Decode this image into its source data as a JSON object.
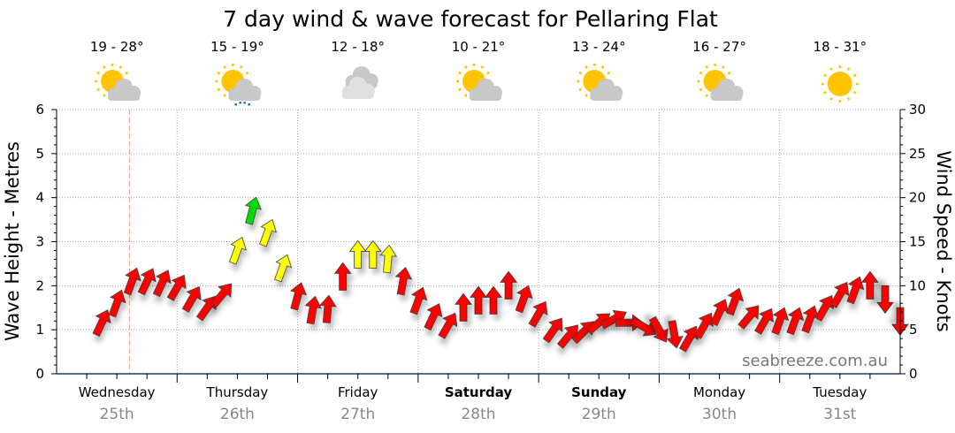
{
  "chart_data": {
    "type": "scatter",
    "title": "7 day wind & wave forecast for Pellaring Flat",
    "ylabel_left": "Wave Height - Metres",
    "ylabel_right": "Wind Speed - Knots",
    "ylim_left": [
      0,
      6
    ],
    "ylim_right": [
      0,
      30
    ],
    "yticks_left": [
      "0",
      "1",
      "2",
      "3",
      "4",
      "5",
      "6"
    ],
    "yticks_right": [
      "0",
      "5",
      "10",
      "15",
      "20",
      "25",
      "30"
    ],
    "grid": true,
    "days": [
      {
        "name": "Wednesday",
        "date": "25th",
        "temp": "19 - 28°",
        "icon": "partly-cloudy",
        "weekend": false
      },
      {
        "name": "Thursday",
        "date": "26th",
        "temp": "15 - 19°",
        "icon": "partly-cloudy-showers",
        "weekend": false
      },
      {
        "name": "Friday",
        "date": "27th",
        "temp": "12 - 18°",
        "icon": "cloudy",
        "weekend": false
      },
      {
        "name": "Saturday",
        "date": "28th",
        "temp": "10 - 21°",
        "icon": "partly-cloudy",
        "weekend": true
      },
      {
        "name": "Sunday",
        "date": "29th",
        "temp": "13 - 24°",
        "icon": "partly-cloudy",
        "weekend": true
      },
      {
        "name": "Monday",
        "date": "30th",
        "temp": "16 - 27°",
        "icon": "partly-cloudy",
        "weekend": false
      },
      {
        "name": "Tuesday",
        "date": "31st",
        "temp": "18 - 31°",
        "icon": "sunny",
        "weekend": false
      }
    ],
    "now_marker_hour": 14.5,
    "wind_series": {
      "name": "Wind speed (knots) and direction arrows",
      "hours": [
        9,
        12,
        15,
        18,
        21,
        24,
        27,
        30,
        33,
        36,
        39,
        42,
        45,
        48,
        51,
        54,
        57,
        60,
        63,
        66,
        69,
        72,
        75,
        78,
        81,
        84,
        87,
        90,
        93,
        96,
        99,
        102,
        105,
        108,
        111,
        114,
        117,
        120,
        123,
        126,
        129,
        132,
        135,
        138,
        141,
        144,
        147,
        150,
        153,
        156,
        159,
        162,
        165,
        168
      ],
      "knots": [
        5.8,
        8,
        10.5,
        10.5,
        10.3,
        9.8,
        8.5,
        7.5,
        9,
        14,
        18.5,
        16,
        12,
        8.8,
        7.2,
        7.3,
        11,
        13.5,
        13.5,
        13,
        10.5,
        8.3,
        6.5,
        5.5,
        7.5,
        8.3,
        8.3,
        10,
        8.5,
        6.8,
        5,
        4.3,
        4.8,
        5.8,
        6.2,
        5.8,
        5.3,
        5,
        4.5,
        4,
        5.5,
        7,
        8.2,
        6.5,
        6,
        6,
        6,
        6.2,
        7.5,
        9,
        9.5,
        10,
        8.5,
        6
      ],
      "direction_deg": [
        25,
        20,
        20,
        25,
        25,
        30,
        30,
        35,
        40,
        20,
        15,
        20,
        20,
        15,
        10,
        5,
        0,
        0,
        0,
        5,
        10,
        20,
        25,
        30,
        0,
        0,
        0,
        0,
        20,
        30,
        35,
        40,
        45,
        50,
        60,
        90,
        120,
        150,
        170,
        30,
        30,
        25,
        20,
        40,
        30,
        20,
        20,
        20,
        30,
        30,
        20,
        0,
        180,
        180
      ]
    },
    "color_scale": {
      "light": "#ff0000",
      "moderate": "#ffff00",
      "strong": "#00dd00"
    },
    "watermark": "seabreeze.com.au"
  }
}
